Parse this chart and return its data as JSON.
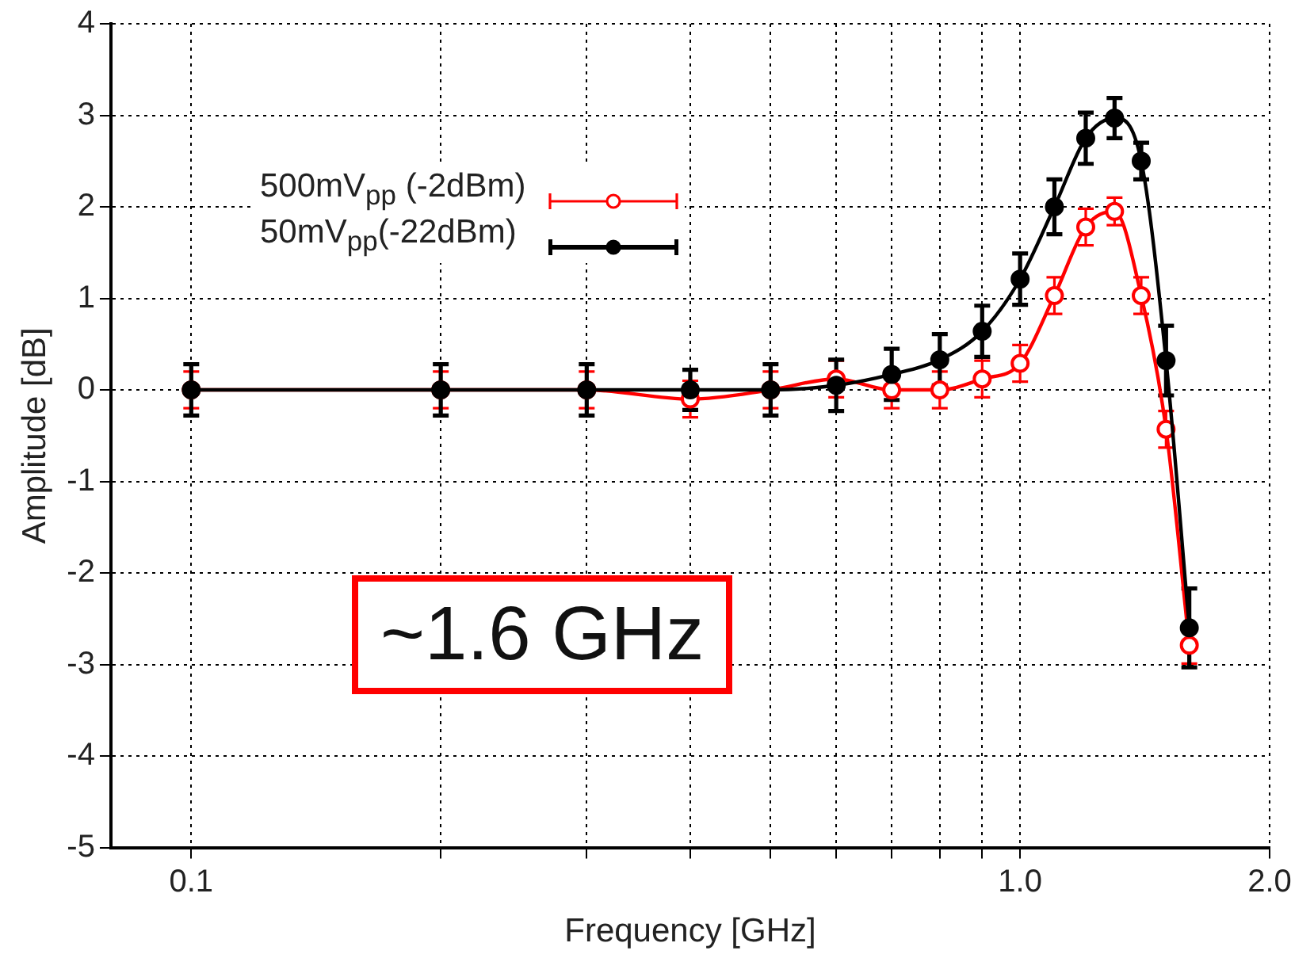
{
  "chart_data": {
    "type": "line",
    "xlabel": "Frequency [GHz]",
    "ylabel": "Amplitude [dB]",
    "x": [
      0.1,
      0.2,
      0.3,
      0.4,
      0.5,
      0.6,
      0.7,
      0.8,
      0.9,
      1.0,
      1.1,
      1.2,
      1.3,
      1.4,
      1.5,
      1.6
    ],
    "series": [
      {
        "name": "500mV$_{pp}$ (-2dBm)",
        "color": "#ff0000",
        "values": [
          0,
          0,
          0,
          -0.1,
          0,
          0.12,
          0,
          0,
          0.12,
          0.29,
          1.03,
          1.78,
          1.95,
          1.03,
          -0.43,
          -2.79
        ],
        "errors": [
          0.2,
          0.2,
          0.2,
          0.2,
          0.2,
          0.2,
          0.2,
          0.2,
          0.2,
          0.2,
          0.2,
          0.2,
          0.15,
          0.2,
          0.2,
          0.2
        ]
      },
      {
        "name": "50mV$_{pp}$(-22dBm)",
        "color": "#000000",
        "values": [
          0,
          0,
          0,
          0,
          0,
          0.05,
          0.17,
          0.33,
          0.64,
          1.21,
          2.0,
          2.75,
          2.97,
          2.5,
          0.32,
          -2.6
        ],
        "errors": [
          0.28,
          0.28,
          0.28,
          0.22,
          0.28,
          0.28,
          0.28,
          0.28,
          0.28,
          0.28,
          0.3,
          0.28,
          0.22,
          0.2,
          0.38,
          0.43
        ]
      }
    ],
    "xlim": [
      0.08,
      2.0
    ],
    "log": "x",
    "xticks": [
      0.1,
      {
        "value": 0.2,
        "label": null
      },
      {
        "value": 0.3,
        "label": null
      },
      {
        "value": 0.4,
        "label": null
      },
      {
        "value": 0.5,
        "label": null
      },
      {
        "value": 0.6,
        "label": null
      },
      {
        "value": 0.7,
        "label": null
      },
      {
        "value": 0.8,
        "label": null
      },
      {
        "value": 0.9,
        "label": null
      },
      {
        "value": 1.0,
        "label": "1.0"
      },
      {
        "value": 2.0,
        "label": "2.0"
      }
    ],
    "ylim": [
      -5,
      4
    ],
    "yticks": [
      -5,
      -4,
      -3,
      -2,
      -1,
      0,
      1,
      2,
      3,
      4
    ],
    "grid": true,
    "legend": "top left",
    "marker": "circle",
    "line_style": "solid",
    "annotations": [
      "~1.6 GHz"
    ]
  }
}
